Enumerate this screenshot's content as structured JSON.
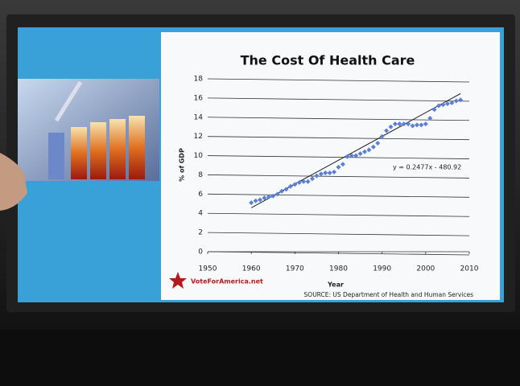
{
  "chart_data": {
    "type": "scatter",
    "title": "The Cost Of Health Care",
    "x_label": "Year",
    "y_label": "% of GDP",
    "source": "SOURCE: US Department of Health and Human Services",
    "logo": "VoteForAmerica.net",
    "x": [
      1960,
      1961,
      1962,
      1963,
      1964,
      1965,
      1966,
      1967,
      1968,
      1969,
      1970,
      1971,
      1972,
      1973,
      1974,
      1975,
      1976,
      1977,
      1978,
      1979,
      1980,
      1981,
      1982,
      1983,
      1984,
      1985,
      1986,
      1987,
      1988,
      1989,
      1990,
      1991,
      1992,
      1993,
      1994,
      1995,
      1996,
      1997,
      1998,
      1999,
      2000,
      2001,
      2002,
      2003,
      2004,
      2005,
      2006,
      2007,
      2008
    ],
    "series": [
      {
        "name": "% of GDP",
        "color": "#5b7fd6",
        "values": [
          5.1,
          5.3,
          5.4,
          5.6,
          5.7,
          5.8,
          6.0,
          6.3,
          6.5,
          6.8,
          7.0,
          7.2,
          7.3,
          7.3,
          7.6,
          7.9,
          8.1,
          8.2,
          8.2,
          8.3,
          8.8,
          9.1,
          9.9,
          10.0,
          10.0,
          10.2,
          10.4,
          10.6,
          10.9,
          11.3,
          12.0,
          12.6,
          13.0,
          13.3,
          13.3,
          13.3,
          13.3,
          13.1,
          13.2,
          13.2,
          13.3,
          13.9,
          14.8,
          15.2,
          15.3,
          15.4,
          15.5,
          15.7,
          15.8
        ]
      }
    ],
    "trendline": {
      "slope": 0.2477,
      "intercept": -480.92,
      "label": "y = 0.2477x - 480.92",
      "color": "#222"
    },
    "xlim": [
      1950,
      2010
    ],
    "xticks": [
      1950,
      1960,
      1970,
      1980,
      1990,
      2000,
      2010
    ],
    "ylim": [
      0,
      18
    ],
    "yticks": [
      0,
      2,
      4,
      6,
      8,
      10,
      12,
      14,
      16,
      18
    ],
    "grid": true
  }
}
